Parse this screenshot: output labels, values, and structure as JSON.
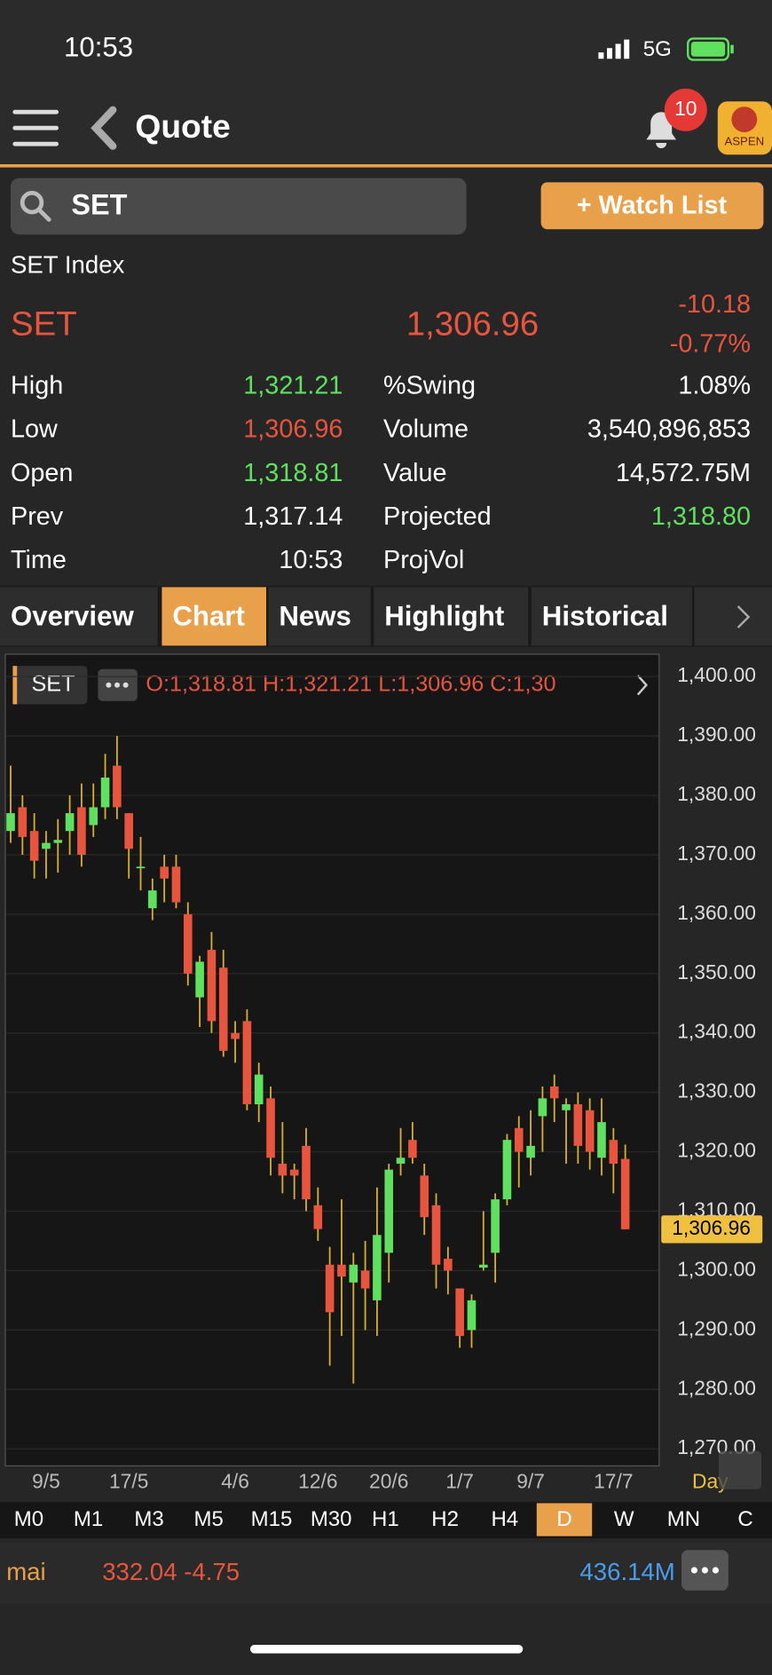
{
  "status_bar": {
    "time": "10:53",
    "network": "5G"
  },
  "header": {
    "title": "Quote",
    "badge": "10",
    "logo": "ASPEN"
  },
  "search": {
    "query": "SET",
    "button": "+ Watch List"
  },
  "quote": {
    "name": "SET Index",
    "symbol": "SET",
    "last": "1,306.96",
    "change": "-10.18",
    "change_pct": "-0.77%"
  },
  "stats": [
    {
      "label": "High",
      "value": "1,321.21",
      "color": "#5fe05f"
    },
    {
      "label": "Low",
      "value": "1,306.96",
      "color": "#e8553f"
    },
    {
      "label": "Open",
      "value": "1,318.81",
      "color": "#5fe05f"
    },
    {
      "label": "Prev",
      "value": "1,317.14",
      "color": "#ffffff"
    },
    {
      "label": "Time",
      "value": "10:53",
      "color": "#ffffff"
    },
    {
      "label": "%Swing",
      "value": "1.08%",
      "color": "#ffffff"
    },
    {
      "label": "Volume",
      "value": "3,540,896,853",
      "color": "#ffffff"
    },
    {
      "label": "Value",
      "value": "14,572.75M",
      "color": "#ffffff"
    },
    {
      "label": "Projected",
      "value": "1,318.80",
      "color": "#5fe05f"
    },
    {
      "label": "ProjVol"
    }
  ],
  "tabs": [
    {
      "label": "Overview"
    },
    {
      "label": "Chart",
      "active": true
    },
    {
      "label": "News"
    },
    {
      "label": "Highlight"
    },
    {
      "label": "Historical"
    }
  ],
  "chart_data": {
    "type": "candlestick",
    "legend_symbol": "SET",
    "ohlc_text": "O:1,318.81 H:1,321.21 L:1,306.96 C:1,30",
    "period": "Day",
    "categories": [
      null,
      null,
      null,
      "9/5",
      null,
      null,
      null,
      null,
      null,
      null,
      "17/5",
      null,
      null,
      null,
      null,
      null,
      null,
      null,
      null,
      "4/6",
      null,
      null,
      null,
      null,
      null,
      null,
      "12/6",
      null,
      null,
      null,
      null,
      null,
      "20/6",
      null,
      null,
      null,
      null,
      null,
      "1/7",
      null,
      null,
      null,
      null,
      null,
      "9/7",
      null,
      null,
      null,
      null,
      null,
      null,
      "17/7",
      null
    ],
    "open": [
      1374,
      1378,
      1374,
      1371,
      1372,
      1374,
      1378,
      1375,
      1378,
      1385,
      1377,
      1368,
      1361,
      1368,
      1368,
      1360,
      1346,
      1354,
      1351,
      1340,
      1342,
      1328,
      1329,
      1318,
      1317,
      1321,
      1311,
      1301,
      1301,
      1298,
      1300,
      1295,
      1303,
      1318,
      1322,
      1316,
      1311,
      1302,
      1297,
      1290,
      1300.5,
      1303,
      1312,
      1324,
      1319,
      1326,
      1331,
      1327,
      1328,
      1327,
      1319,
      1322,
      1318.81
    ],
    "high": [
      1385,
      1380,
      1377,
      1374,
      1376,
      1380,
      1382,
      1382,
      1387,
      1390,
      1377,
      1373,
      1366,
      1370,
      1370,
      1362,
      1353,
      1357,
      1354,
      1342,
      1344,
      1335,
      1331,
      1325,
      1318,
      1324,
      1314,
      1304,
      1312,
      1303,
      1305,
      1314,
      1318,
      1324,
      1325,
      1318,
      1313,
      1304,
      1297,
      1296,
      1310,
      1313,
      1323,
      1326,
      1327,
      1331,
      1333,
      1329,
      1330,
      1329,
      1329,
      1324,
      1321.21
    ],
    "low": [
      1372,
      1370,
      1366,
      1366,
      1367,
      1370,
      1368,
      1373,
      1376,
      1376,
      1366,
      1364,
      1359,
      1362,
      1361,
      1348,
      1341,
      1340,
      1336,
      1335,
      1327,
      1325,
      1316,
      1313,
      1312,
      1310,
      1305,
      1284,
      1289,
      1281,
      1290,
      1289,
      1298,
      1316,
      1318,
      1306,
      1297,
      1296,
      1287,
      1287,
      1300,
      1298,
      1311,
      1314,
      1316,
      1320,
      1325,
      1318,
      1318,
      1317,
      1316,
      1313,
      1306.96
    ],
    "close": [
      1377,
      1373,
      1369,
      1372,
      1372.5,
      1377,
      1370,
      1378,
      1383,
      1378,
      1371,
      1368,
      1364,
      1366,
      1362,
      1350,
      1352,
      1342,
      1337,
      1339,
      1328,
      1333,
      1319,
      1316,
      1316,
      1312,
      1307,
      1293,
      1299,
      1301,
      1297,
      1306,
      1317,
      1319,
      1319,
      1309,
      1301,
      1300,
      1289,
      1295,
      1301,
      1312,
      1322,
      1320,
      1321,
      1329,
      1329,
      1328,
      1321,
      1320,
      1325,
      1318,
      1306.96
    ],
    "up_color": "#5fe05f",
    "down_color": "#e8553f",
    "wick_color": "#d8b030",
    "ylim": [
      1270,
      1400
    ],
    "yticks": [
      {
        "value": 1270,
        "label": "1,270.00"
      },
      {
        "value": 1280,
        "label": "1,280.00"
      },
      {
        "value": 1290,
        "label": "1,290.00"
      },
      {
        "value": 1300,
        "label": "1,300.00"
      },
      {
        "value": 1310,
        "label": "1,310.00"
      },
      {
        "value": 1320,
        "label": "1,320.00"
      },
      {
        "value": 1330,
        "label": "1,330.00"
      },
      {
        "value": 1340,
        "label": "1,340.00"
      },
      {
        "value": 1350,
        "label": "1,350.00"
      },
      {
        "value": 1360,
        "label": "1,360.00"
      },
      {
        "value": 1370,
        "label": "1,370.00"
      },
      {
        "value": 1380,
        "label": "1,380.00"
      },
      {
        "value": 1390,
        "label": "1,390.00"
      },
      {
        "value": 1400,
        "label": "1,400.00"
      }
    ],
    "last_price": {
      "value": 1306.96,
      "label": "1,306.96"
    },
    "grid": true
  },
  "timeframes": [
    {
      "label": "M0"
    },
    {
      "label": "M1"
    },
    {
      "label": "M3"
    },
    {
      "label": "M5"
    },
    {
      "label": "M15"
    },
    {
      "label": "M30"
    },
    {
      "label": "H1"
    },
    {
      "label": "H2"
    },
    {
      "label": "H4"
    },
    {
      "label": "D",
      "active": true
    },
    {
      "label": "W"
    },
    {
      "label": "MN"
    },
    {
      "label": "C"
    }
  ],
  "market_bar": {
    "name": "mai",
    "quote": "332.04 -4.75",
    "value": "436.14M"
  }
}
